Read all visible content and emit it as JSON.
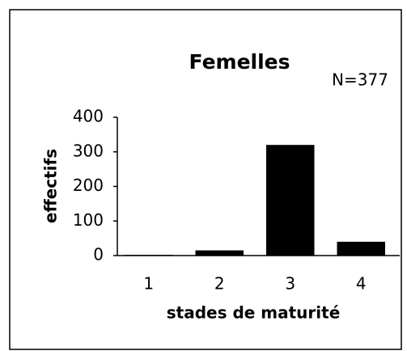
{
  "chart_data": {
    "type": "bar",
    "title": "Femelles",
    "annotation": "N=377",
    "ylabel": "effectifs",
    "xlabel": "stades de maturité",
    "categories": [
      "1",
      "2",
      "3",
      "4"
    ],
    "values": [
      2,
      15,
      320,
      40
    ],
    "color": "#000000",
    "ylim": [
      0,
      400
    ],
    "yticks": [
      0,
      100,
      200,
      300,
      400
    ],
    "grid": false
  }
}
